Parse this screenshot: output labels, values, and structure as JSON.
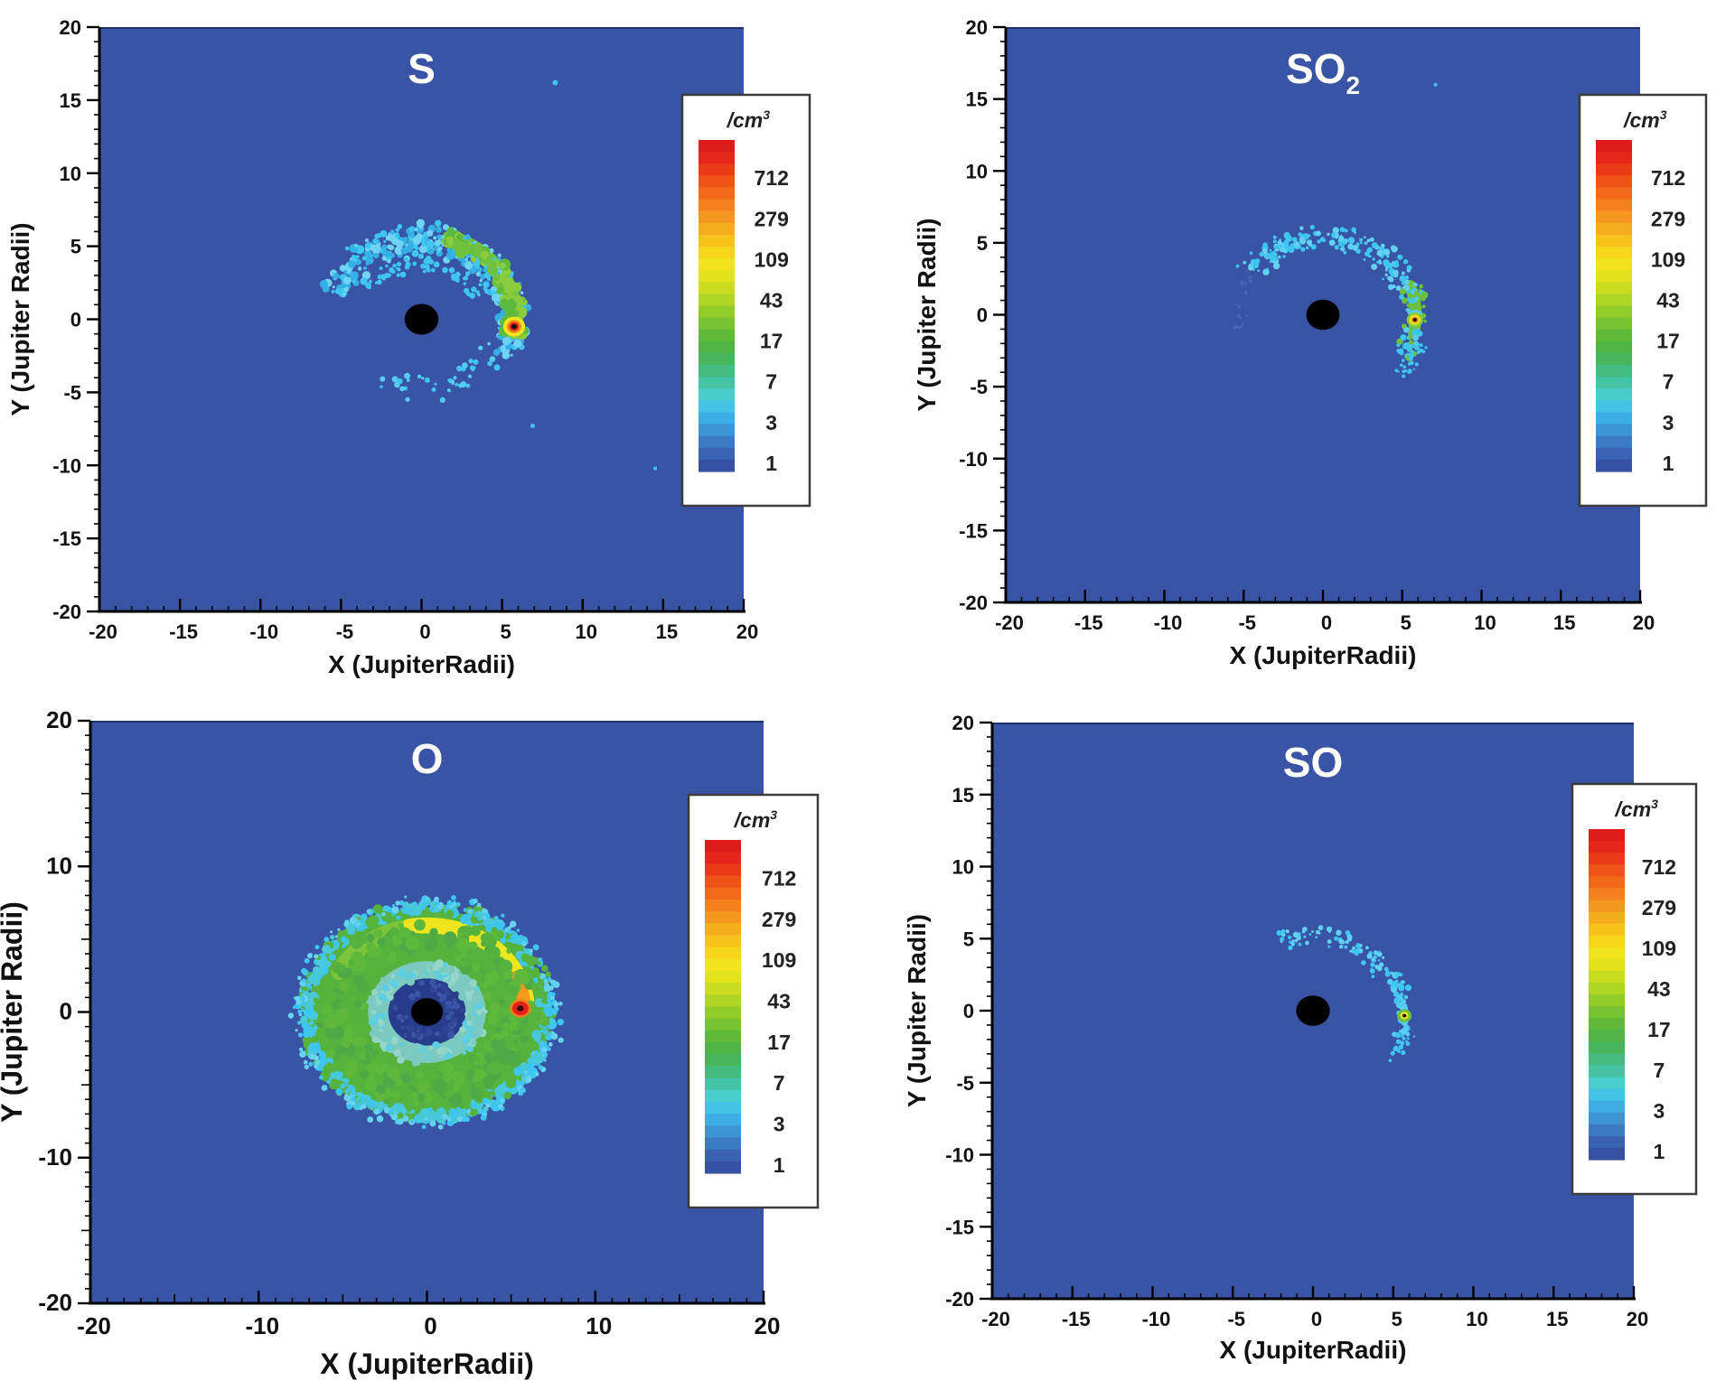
{
  "figure": {
    "description": "Simulated neutral cloud number densities of S, SO2, O and SO around Jupiter (Io plasma torus), shown as 2D maps in Jupiter Radii with a logarithmic /cm3 color scale",
    "background": "#ffffff"
  },
  "colors": {
    "plot_bg": "#3954a4",
    "plot_top_edge": "#1c2f6e",
    "axis": "#000000",
    "tick_label": "#111111",
    "title": "#ffffff",
    "jupiter": "#000000",
    "speckle_cyan": "#3fc6f0"
  },
  "colorbar": {
    "unit_main": "/cm",
    "unit_exp": "3",
    "tick_labels": [
      "712",
      "279",
      "109",
      "43",
      "17",
      "7",
      "3",
      "1"
    ],
    "band_colors": [
      "#dd1c1a",
      "#e52619",
      "#eb3a16",
      "#ef5316",
      "#f26a19",
      "#f4811d",
      "#f5971e",
      "#f6ad1d",
      "#f7c21c",
      "#f6d61b",
      "#f2e41c",
      "#e2e21d",
      "#c9dc20",
      "#aed424",
      "#92cc29",
      "#78c331",
      "#60ba3a",
      "#4fb443",
      "#47b55c",
      "#44bb7f",
      "#45c4a5",
      "#49cecb",
      "#43c3e6",
      "#3dade5",
      "#3c93d6",
      "#3b7ac5",
      "#3a64b3",
      "#3751a2"
    ]
  },
  "chart_data": [
    {
      "type": "heatmap",
      "title": "S",
      "title_sub": "",
      "xlabel": "X (JupiterRadii)",
      "ylabel": "Y (Jupiter Radii)",
      "xlim": [
        -20,
        20
      ],
      "ylim": [
        -20,
        20
      ],
      "x_ticks": [
        -20,
        -15,
        -10,
        -5,
        0,
        5,
        10,
        15,
        20
      ],
      "y_ticks": [
        20,
        15,
        10,
        5,
        0,
        -5,
        -10,
        -15,
        -20
      ],
      "minor_tick_step": 1,
      "colorbar_unit": "/cm3",
      "colorbar_ticks": [
        712,
        279,
        109,
        43,
        17,
        7,
        3,
        1
      ],
      "features": {
        "jupiter": {
          "x": 0,
          "y": 0,
          "r": 1.05
        },
        "io": {
          "x": 5.75,
          "y": -0.5,
          "rings": [
            {
              "r": 0.68,
              "c": "#f2e51d"
            },
            {
              "r": 0.45,
              "c": "#f0891b"
            },
            {
              "r": 0.3,
              "c": "#e6211a"
            },
            {
              "r": 0.17,
              "c": "#111111"
            }
          ]
        },
        "disks": [],
        "bands": [
          {
            "a0": -6,
            "a1": 72,
            "r": 5.8,
            "w": 1.05,
            "c": "#70c13d"
          }
        ],
        "speckle_arcs": [
          {
            "a0": -28,
            "a1": 162,
            "r0": 4.2,
            "r1": 6.9,
            "n": 360,
            "sz": [
              1.5,
              5
            ],
            "seed": 101,
            "cs": [
              "#3fc6f0",
              "#6fd4f4",
              "#35b0e4"
            ]
          },
          {
            "a0": -130,
            "a1": -28,
            "r0": 3.6,
            "r1": 6.0,
            "n": 40,
            "sz": [
              1.5,
              3.5
            ],
            "seed": 102,
            "cs": [
              "#3fc6f0",
              "#57cdf2"
            ]
          },
          {
            "a0": 25,
            "a1": 150,
            "r0": 3.2,
            "r1": 4.4,
            "n": 55,
            "sz": [
              1.5,
              3.5
            ],
            "seed": 103,
            "cs": [
              "#3fc6f0"
            ]
          },
          {
            "a0": -10,
            "a1": 74,
            "r0": 5.0,
            "r1": 6.6,
            "n": 110,
            "sz": [
              3,
              7
            ],
            "seed": 104,
            "cs": [
              "#70c13d",
              "#5db93f",
              "#8bcb3e"
            ]
          }
        ],
        "strays": [
          {
            "x": 8.3,
            "y": 16.2,
            "s": 3
          },
          {
            "x": 6.9,
            "y": -7.3,
            "s": 2.5
          },
          {
            "x": 14.5,
            "y": -10.2,
            "s": 2
          }
        ]
      }
    },
    {
      "type": "heatmap",
      "title": "SO",
      "title_sub": "2",
      "xlabel": "X (JupiterRadii)",
      "ylabel": "Y (Jupiter Radii)",
      "xlim": [
        -20,
        20
      ],
      "ylim": [
        -20,
        20
      ],
      "x_ticks": [
        -20,
        -15,
        -10,
        -5,
        0,
        5,
        10,
        15,
        20
      ],
      "y_ticks": [
        20,
        15,
        10,
        5,
        0,
        -5,
        -10,
        -15,
        -20
      ],
      "minor_tick_step": 1,
      "colorbar_unit": "/cm3",
      "colorbar_ticks": [
        712,
        279,
        109,
        43,
        17,
        7,
        3,
        1
      ],
      "features": {
        "jupiter": {
          "x": 0,
          "y": 0,
          "r": 1.05
        },
        "io": {
          "x": 5.8,
          "y": -0.35,
          "rings": [
            {
              "r": 0.52,
              "c": "#8bcb3e"
            },
            {
              "r": 0.34,
              "c": "#f2e51d"
            },
            {
              "r": 0.22,
              "c": "#f0891b"
            },
            {
              "r": 0.12,
              "c": "#111111"
            }
          ]
        },
        "disks": [],
        "bands": [
          {
            "a0": -12,
            "a1": 20,
            "r": 5.85,
            "w": 0.75,
            "c": "#6dbf3e"
          }
        ],
        "speckle_arcs": [
          {
            "a0": 18,
            "a1": 148,
            "r0": 4.4,
            "r1": 6.5,
            "n": 190,
            "sz": [
              1.2,
              3.8
            ],
            "seed": 201,
            "cs": [
              "#3fc6f0",
              "#62d1f3"
            ]
          },
          {
            "a0": -30,
            "a1": 18,
            "r0": 5.0,
            "r1": 6.6,
            "n": 80,
            "sz": [
              1.5,
              4
            ],
            "seed": 202,
            "cs": [
              "#3fc6f0",
              "#57cdf2",
              "#6dbf3e"
            ]
          },
          {
            "a0": 150,
            "a1": 190,
            "r0": 4.4,
            "r1": 5.8,
            "n": 18,
            "sz": [
              1,
              2.2
            ],
            "seed": 203,
            "cs": [
              "#4a66b5"
            ]
          },
          {
            "a0": -42,
            "a1": -18,
            "r0": 5.8,
            "r1": 7.0,
            "n": 30,
            "sz": [
              1.2,
              3
            ],
            "seed": 204,
            "cs": [
              "#3fc6f0"
            ]
          }
        ],
        "strays": [
          {
            "x": 7.1,
            "y": 16.0,
            "s": 2
          }
        ]
      }
    },
    {
      "type": "heatmap",
      "title": "O",
      "title_sub": "",
      "xlabel": "X (JupiterRadii)",
      "ylabel": "Y (Jupiter Radii)",
      "xlim": [
        -20,
        20
      ],
      "ylim": [
        -20,
        20
      ],
      "x_ticks": [
        -20,
        -10,
        0,
        10,
        20
      ],
      "y_ticks": [
        20,
        10,
        0,
        -10,
        -20
      ],
      "minor_tick_step": 1,
      "colorbar_unit": "/cm3",
      "colorbar_ticks": [
        712,
        279,
        109,
        43,
        17,
        7,
        3,
        1
      ],
      "features": {
        "jupiter": {
          "x": 0,
          "y": 0,
          "r": 0.95
        },
        "io": {
          "x": 5.55,
          "y": 0.25,
          "rings": [
            {
              "r": 0.62,
              "c": "#f07f1a"
            },
            {
              "r": 0.48,
              "c": "#e6211a"
            },
            {
              "r": 0.2,
              "c": "#3a0f0f"
            }
          ]
        },
        "disks": [
          {
            "r": 7.05,
            "c": "#55b23d"
          },
          {
            "r": 3.5,
            "c": "#7ccabf"
          },
          {
            "r": 2.3,
            "c": "#283c8c"
          }
        ],
        "bands": [
          {
            "a0": 100,
            "a1": 152,
            "r": 5.9,
            "w": 1.0,
            "c": "#7cc43b"
          },
          {
            "a0": 8,
            "a1": 100,
            "r": 5.95,
            "w": 0.95,
            "c": "#efe51e"
          },
          {
            "a0": 2,
            "a1": 24,
            "r": 5.8,
            "w": 0.8,
            "c": "#f59a1d"
          }
        ],
        "speckle_arcs": [
          {
            "a0": 0,
            "a1": 360,
            "r0": 6.6,
            "r1": 7.7,
            "n": 550,
            "sz": [
              2,
              6
            ],
            "seed": 301,
            "cs": [
              "#55b23d",
              "#49c8d8",
              "#3fc6f0"
            ]
          },
          {
            "a0": 0,
            "a1": 360,
            "r0": 7.1,
            "r1": 8.2,
            "n": 200,
            "sz": [
              1.5,
              4
            ],
            "seed": 302,
            "cs": [
              "#3fc6f0",
              "#67d3f2"
            ]
          },
          {
            "a0": 0,
            "a1": 360,
            "r0": 2.2,
            "r1": 3.7,
            "n": 200,
            "sz": [
              2,
              5
            ],
            "seed": 303,
            "cs": [
              "#7ccabf",
              "#5ecfe0",
              "#93d6c9"
            ]
          },
          {
            "a0": 0,
            "a1": 360,
            "r0": 3.6,
            "r1": 6.8,
            "n": 300,
            "sz": [
              3,
              8
            ],
            "seed": 304,
            "cs": [
              "#55b23d",
              "#5eb83c",
              "#4daa45"
            ]
          },
          {
            "a0": 0,
            "a1": 360,
            "r0": 1.1,
            "r1": 2.2,
            "n": 60,
            "sz": [
              2,
              4
            ],
            "seed": 305,
            "cs": [
              "#2f4694",
              "#3a55a8"
            ]
          }
        ],
        "strays": []
      }
    },
    {
      "type": "heatmap",
      "title": "SO",
      "title_sub": "",
      "xlabel": "X (JupiterRadii)",
      "ylabel": "Y (Jupiter Radii)",
      "xlim": [
        -20,
        20
      ],
      "ylim": [
        -20,
        20
      ],
      "x_ticks": [
        -20,
        -15,
        -10,
        -5,
        0,
        5,
        10,
        15,
        20
      ],
      "y_ticks": [
        20,
        15,
        10,
        5,
        0,
        -5,
        -10,
        -15,
        -20
      ],
      "minor_tick_step": 1,
      "colorbar_unit": "/cm3",
      "colorbar_ticks": [
        712,
        279,
        109,
        43,
        17,
        7,
        3,
        1
      ],
      "features": {
        "jupiter": {
          "x": 0,
          "y": 0,
          "r": 1.05
        },
        "io": {
          "x": 5.7,
          "y": -0.35,
          "rings": [
            {
              "r": 0.45,
              "c": "#6dbf3e"
            },
            {
              "r": 0.26,
              "c": "#f2e51d"
            },
            {
              "r": 0.12,
              "c": "#111111"
            }
          ]
        },
        "disks": [],
        "bands": [],
        "speckle_arcs": [
          {
            "a0": 28,
            "a1": 115,
            "r0": 4.3,
            "r1": 6.0,
            "n": 80,
            "sz": [
              1.2,
              3.2
            ],
            "seed": 401,
            "cs": [
              "#3fc6f0",
              "#62d1f3"
            ]
          },
          {
            "a0": -18,
            "a1": 28,
            "r0": 5.0,
            "r1": 6.2,
            "n": 55,
            "sz": [
              1.5,
              4
            ],
            "seed": 402,
            "cs": [
              "#3fc6f0",
              "#57cdf2"
            ]
          },
          {
            "a0": -38,
            "a1": -15,
            "r0": 5.6,
            "r1": 6.6,
            "n": 18,
            "sz": [
              1.2,
              2.8
            ],
            "seed": 403,
            "cs": [
              "#3fc6f0"
            ]
          }
        ],
        "strays": []
      }
    }
  ]
}
